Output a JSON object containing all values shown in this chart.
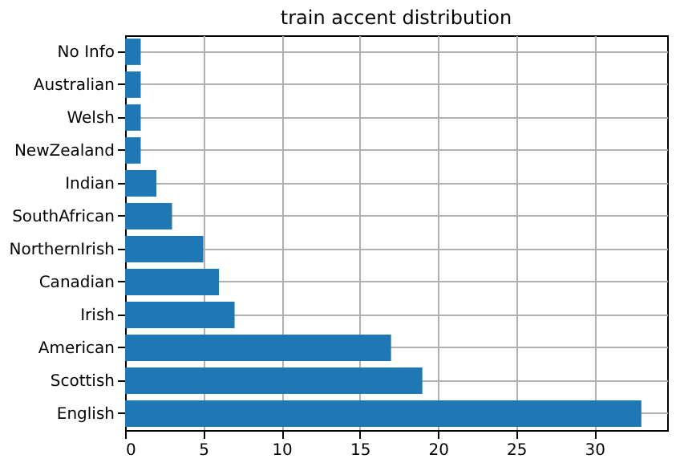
{
  "chart_data": {
    "type": "bar",
    "orientation": "horizontal",
    "title": "train accent distribution",
    "categories": [
      "No Info",
      "Australian",
      "Welsh",
      "NewZealand",
      "Indian",
      "SouthAfrican",
      "NorthernIrish",
      "Canadian",
      "Irish",
      "American",
      "Scottish",
      "English"
    ],
    "values": [
      1,
      1,
      1,
      1,
      2,
      3,
      5,
      6,
      7,
      17,
      19,
      33
    ],
    "color": "#1f77b4",
    "xlim": [
      0,
      34.65
    ],
    "xticks": [
      0,
      5,
      10,
      15,
      20,
      25,
      30
    ],
    "grid": true
  }
}
